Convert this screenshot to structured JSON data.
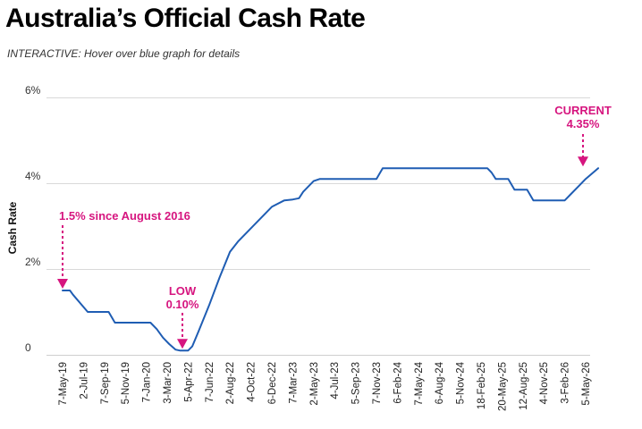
{
  "title": "Australia’s Official Cash Rate",
  "subtitle": "INTERACTIVE: Hover over blue graph for details",
  "colors": {
    "line": "#1f5db3",
    "annotation": "#d6157f",
    "grid": "#d9d9d9"
  },
  "chart_data": {
    "type": "line",
    "title": "Australia’s Official Cash Rate",
    "xlabel": "",
    "ylabel": "Cash Rate",
    "ylim": [
      0,
      6
    ],
    "yticks": [
      0,
      2,
      4,
      6
    ],
    "ytick_labels": [
      "0",
      "2%",
      "4%",
      "6%"
    ],
    "grid": true,
    "categories": [
      "7-May-19",
      "2-Jul-19",
      "7-Sep-19",
      "5-Nov-19",
      "7-Jan-20",
      "3-Mar-20",
      "5-Apr-22",
      "7-Jun-22",
      "2-Aug-22",
      "4-Oct-22",
      "6-Dec-22",
      "7-Mar-23",
      "2-May-23",
      "4-Jul-23",
      "5-Sep-23",
      "7-Nov-23",
      "6-Feb-24",
      "7-May-24",
      "6-Aug-24",
      "5-Nov-24",
      "18-Feb-25",
      "20-May-25",
      "12-Aug-25",
      "4-Nov-25",
      "3-Feb-26",
      "5-May-26"
    ],
    "series": [
      {
        "name": "",
        "points": [
          [
            0,
            1.5
          ],
          [
            0.35,
            1.5
          ],
          [
            0.5,
            1.4
          ],
          [
            1.2,
            1.0
          ],
          [
            2.2,
            1.0
          ],
          [
            2.5,
            0.75
          ],
          [
            4.2,
            0.75
          ],
          [
            4.5,
            0.6
          ],
          [
            4.8,
            0.4
          ],
          [
            5.1,
            0.25
          ],
          [
            5.4,
            0.12
          ],
          [
            5.6,
            0.1
          ],
          [
            6.0,
            0.1
          ],
          [
            6.2,
            0.2
          ],
          [
            6.5,
            0.55
          ],
          [
            7.0,
            1.15
          ],
          [
            7.5,
            1.8
          ],
          [
            8.0,
            2.4
          ],
          [
            8.4,
            2.65
          ],
          [
            9.0,
            2.95
          ],
          [
            9.5,
            3.2
          ],
          [
            10.0,
            3.45
          ],
          [
            10.6,
            3.6
          ],
          [
            11.0,
            3.62
          ],
          [
            11.3,
            3.65
          ],
          [
            11.5,
            3.8
          ],
          [
            12.0,
            4.05
          ],
          [
            12.3,
            4.1
          ],
          [
            15.0,
            4.1
          ],
          [
            15.3,
            4.35
          ],
          [
            20.3,
            4.35
          ],
          [
            20.5,
            4.25
          ],
          [
            20.7,
            4.1
          ],
          [
            21.3,
            4.1
          ],
          [
            21.6,
            3.85
          ],
          [
            22.2,
            3.85
          ],
          [
            22.5,
            3.6
          ],
          [
            24.0,
            3.6
          ],
          [
            24.3,
            3.75
          ],
          [
            24.7,
            3.95
          ],
          [
            25.0,
            4.1
          ],
          [
            25.6,
            4.35
          ]
        ]
      }
    ],
    "annotations": [
      {
        "text": "1.5% since August 2016",
        "value": 1.5
      },
      {
        "text": "LOW",
        "value2_text": "0.10%",
        "value": 0.1
      },
      {
        "text": "CURRENT",
        "value2_text": "4.35%",
        "value": 4.35
      }
    ]
  }
}
